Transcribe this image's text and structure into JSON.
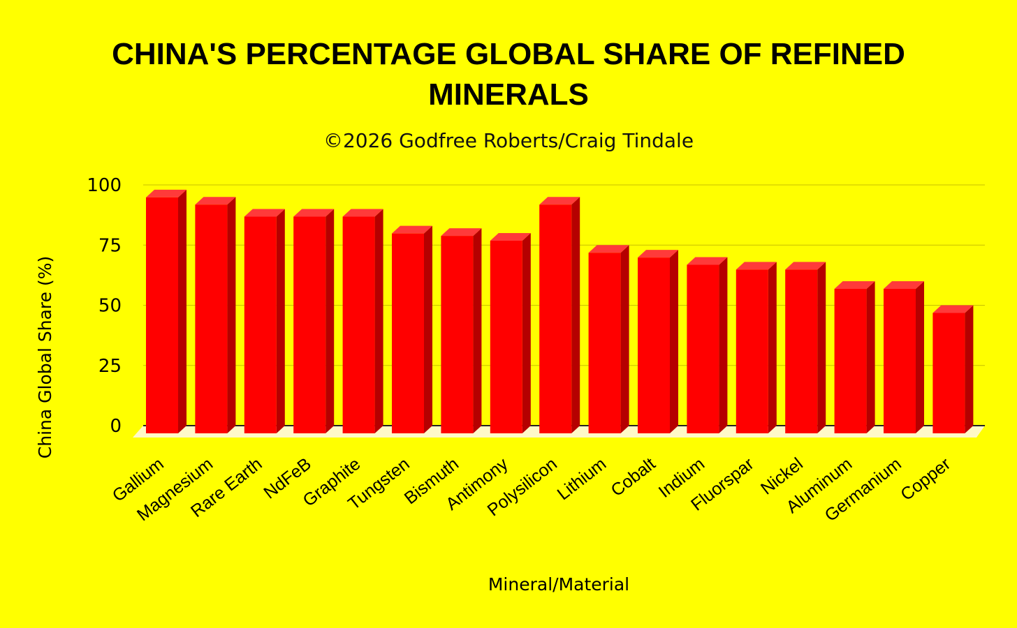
{
  "chart_data": {
    "type": "bar",
    "title_lines": [
      "CHINA'S PERCENTAGE GLOBAL SHARE OF REFINED",
      "MINERALS"
    ],
    "subtitle": "©2026 Godfree Roberts/Craig Tindale",
    "xlabel": "Mineral/Material",
    "ylabel": "China Global Share (%)",
    "ylim": [
      0,
      100
    ],
    "yticks": [
      "0",
      "25",
      "50",
      "75",
      "100"
    ],
    "ytick_values": [
      0,
      25,
      50,
      75,
      100
    ],
    "grid": true,
    "categories": [
      "Gallium",
      "Magnesium",
      "Rare Earth",
      "NdFeB",
      "Graphite",
      "Tungsten",
      "Bismuth",
      "Antimony",
      "Polysilicon",
      "Lithium",
      "Cobalt",
      "Indium",
      "Fluorspar",
      "Nickel",
      "Aluminum",
      "Germanium",
      "Copper"
    ],
    "values": [
      98,
      95,
      90,
      90,
      90,
      83,
      82,
      80,
      95,
      75,
      73,
      70,
      68,
      68,
      60,
      60,
      50
    ],
    "colors": {
      "background": "#ffff00",
      "bar_front": "#ff0000",
      "bar_top": "#ff3a3a",
      "bar_side": "#b50000",
      "grid": "#c8c000",
      "floor": "#fff9c8"
    }
  }
}
